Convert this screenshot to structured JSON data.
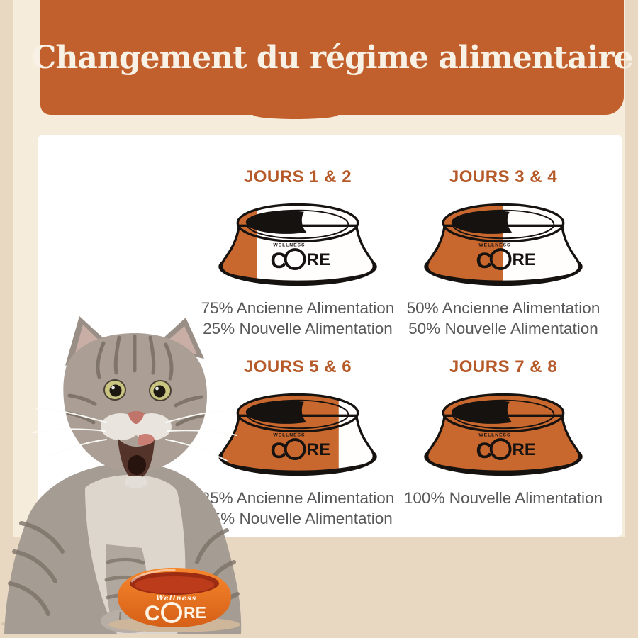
{
  "header": {
    "title": "Changement du régime alimentaire"
  },
  "brand": {
    "wellness": "Wellness",
    "wellness_caps": "WELLNESS",
    "core": "CORE",
    "core_c": "C",
    "core_re": "RE"
  },
  "steps": [
    {
      "heading": "JOURS 1 & 2",
      "lines": [
        "75% Ancienne Alimentation",
        "25% Nouvelle Alimentation"
      ],
      "nouvelle_percent": 25
    },
    {
      "heading": "JOURS 3 & 4",
      "lines": [
        "50% Ancienne Alimentation",
        "50% Nouvelle Alimentation"
      ],
      "nouvelle_percent": 50
    },
    {
      "heading": "JOURS 5 & 6",
      "lines": [
        "25% Ancienne Alimentation",
        "75% Nouvelle Alimentation"
      ],
      "nouvelle_percent": 75
    },
    {
      "heading": "JOURS 7 & 8",
      "lines": [
        "100% Nouvelle Alimentation"
      ],
      "nouvelle_percent": 100
    }
  ],
  "colors": {
    "banner_orange": "#c2602d",
    "bowl_orange": "#c8682f",
    "heading_orange": "#b55a28",
    "text_gray": "#58585a",
    "outline_black": "#161210",
    "background_beige": "#e9d8c1",
    "mat_beige": "#f6ecdc",
    "panel_white": "#ffffff"
  }
}
